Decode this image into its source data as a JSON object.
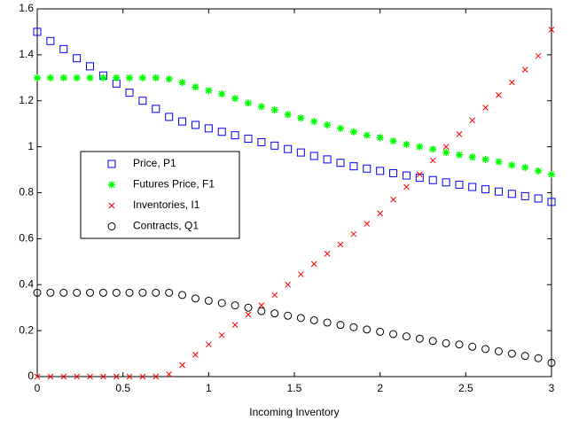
{
  "chart_data": {
    "type": "scatter",
    "xlabel": "Incoming Inventory",
    "x": [
      0,
      0.077,
      0.154,
      0.231,
      0.308,
      0.385,
      0.462,
      0.538,
      0.615,
      0.692,
      0.769,
      0.846,
      0.923,
      1,
      1.077,
      1.154,
      1.231,
      1.308,
      1.385,
      1.462,
      1.538,
      1.615,
      1.692,
      1.769,
      1.846,
      1.923,
      2,
      2.077,
      2.154,
      2.231,
      2.308,
      2.385,
      2.462,
      2.538,
      2.615,
      2.692,
      2.769,
      2.846,
      2.923,
      3
    ],
    "series": [
      {
        "name": "Price, P1",
        "color": "#0000ff",
        "marker": "square",
        "values": [
          1.5,
          1.46,
          1.425,
          1.385,
          1.35,
          1.31,
          1.275,
          1.235,
          1.2,
          1.165,
          1.13,
          1.11,
          1.095,
          1.08,
          1.065,
          1.05,
          1.035,
          1.02,
          1.005,
          0.99,
          0.975,
          0.96,
          0.945,
          0.93,
          0.915,
          0.905,
          0.895,
          0.885,
          0.875,
          0.865,
          0.855,
          0.845,
          0.835,
          0.825,
          0.815,
          0.805,
          0.795,
          0.785,
          0.775,
          0.76
        ]
      },
      {
        "name": "Futures Price, F1",
        "color": "#00ff00",
        "marker": "star",
        "values": [
          1.3,
          1.3,
          1.3,
          1.3,
          1.3,
          1.3,
          1.3,
          1.3,
          1.3,
          1.3,
          1.295,
          1.28,
          1.26,
          1.245,
          1.23,
          1.21,
          1.19,
          1.175,
          1.16,
          1.14,
          1.125,
          1.11,
          1.095,
          1.08,
          1.065,
          1.05,
          1.04,
          1.025,
          1.01,
          1.0,
          0.99,
          0.975,
          0.965,
          0.955,
          0.945,
          0.935,
          0.92,
          0.91,
          0.895,
          0.88
        ]
      },
      {
        "name": "Inventories, I1",
        "color": "#ff0000",
        "marker": "x",
        "values": [
          0,
          0,
          0,
          0,
          0,
          0,
          0,
          0,
          0,
          0,
          0.01,
          0.05,
          0.095,
          0.14,
          0.18,
          0.225,
          0.27,
          0.31,
          0.355,
          0.4,
          0.445,
          0.49,
          0.535,
          0.575,
          0.62,
          0.665,
          0.71,
          0.77,
          0.825,
          0.88,
          0.94,
          1.0,
          1.055,
          1.115,
          1.17,
          1.225,
          1.28,
          1.335,
          1.395,
          1.51
        ]
      },
      {
        "name": "Contracts, Q1",
        "color": "#000000",
        "marker": "circle",
        "values": [
          0.365,
          0.365,
          0.365,
          0.365,
          0.365,
          0.365,
          0.365,
          0.365,
          0.365,
          0.365,
          0.365,
          0.355,
          0.34,
          0.33,
          0.32,
          0.31,
          0.3,
          0.285,
          0.275,
          0.265,
          0.255,
          0.245,
          0.235,
          0.225,
          0.215,
          0.205,
          0.195,
          0.185,
          0.175,
          0.165,
          0.155,
          0.145,
          0.14,
          0.13,
          0.12,
          0.11,
          0.1,
          0.09,
          0.08,
          0.06
        ]
      }
    ],
    "xlim": [
      0,
      3
    ],
    "xticks": [
      0,
      0.5,
      1,
      1.5,
      2,
      2.5,
      3
    ],
    "ylim": [
      0,
      1.6
    ],
    "yticks": [
      0,
      0.2,
      0.4,
      0.6,
      0.8,
      1,
      1.2,
      1.4,
      1.6
    ],
    "legend": "center-left"
  }
}
